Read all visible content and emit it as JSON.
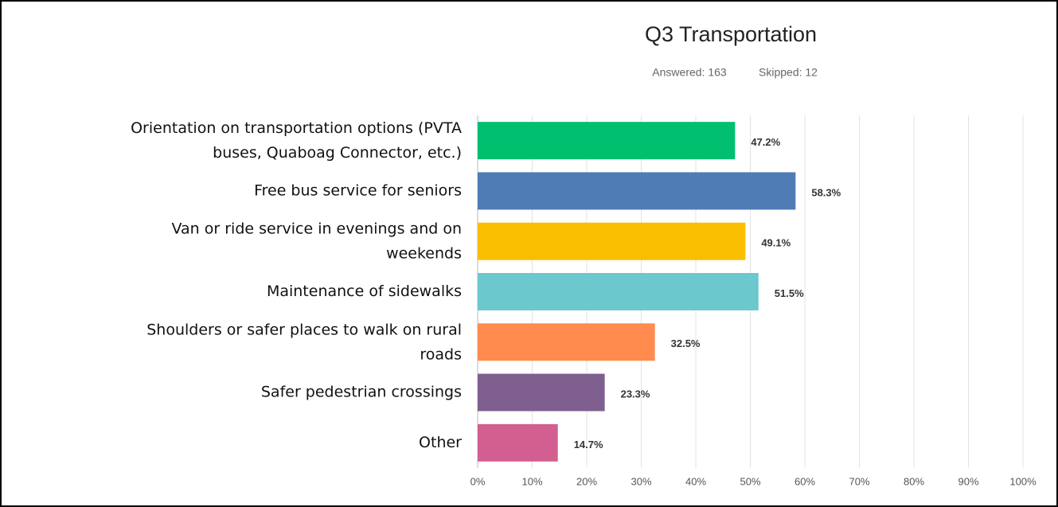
{
  "chart_data": {
    "type": "bar",
    "orientation": "horizontal",
    "title": "Q3 Transportation",
    "answered": "Answered: 163",
    "skipped": "Skipped: 12",
    "categories": [
      "Orientation on transportation options (PVTA buses, Quaboag Connector, etc.)",
      "Free bus service for seniors",
      "Van or ride service in evenings and on weekends",
      "Maintenance of sidewalks",
      "Shoulders or safer places to walk on rural roads",
      "Safer pedestrian crossings",
      "Other"
    ],
    "values": [
      47.2,
      58.3,
      49.1,
      51.5,
      32.5,
      23.3,
      14.7
    ],
    "value_labels": [
      "47.2%",
      "58.3%",
      "49.1%",
      "51.5%",
      "32.5%",
      "23.3%",
      "14.7%"
    ],
    "colors": [
      "#00bf6f",
      "#507cb6",
      "#f9be00",
      "#6bc8cd",
      "#ff8b4f",
      "#7f5f90",
      "#d25f90"
    ],
    "xlim": [
      0,
      100
    ],
    "xticks": [
      {
        "value": 0,
        "label": "0%"
      },
      {
        "value": 10,
        "label": "10%"
      },
      {
        "value": 20,
        "label": "20%"
      },
      {
        "value": 30,
        "label": "30%"
      },
      {
        "value": 40,
        "label": "40%"
      },
      {
        "value": 50,
        "label": "50%"
      },
      {
        "value": 60,
        "label": "60%"
      },
      {
        "value": 70,
        "label": "70%"
      },
      {
        "value": 80,
        "label": "80%"
      },
      {
        "value": 90,
        "label": "90%"
      },
      {
        "value": 100,
        "label": "100%"
      }
    ],
    "grid": true
  }
}
